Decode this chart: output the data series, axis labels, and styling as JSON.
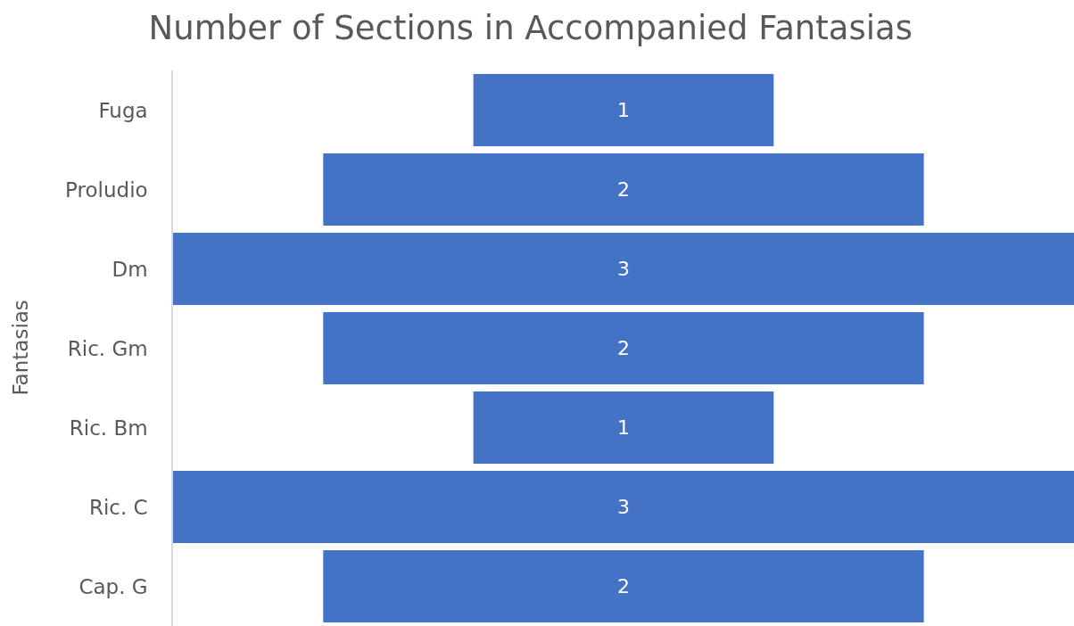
{
  "chart_data": {
    "type": "other",
    "title": "Number of Sections in Accompanied Fantasias",
    "ylabel": "Fantasias",
    "categories": [
      "Fuga",
      "Proludio",
      "Dm",
      "Ric. Gm",
      "Ric. Bm",
      "Ric. C",
      "Cap. G"
    ],
    "values": [
      1,
      2,
      3,
      2,
      1,
      3,
      2
    ],
    "color": "#4472c4",
    "data_labels": true
  }
}
